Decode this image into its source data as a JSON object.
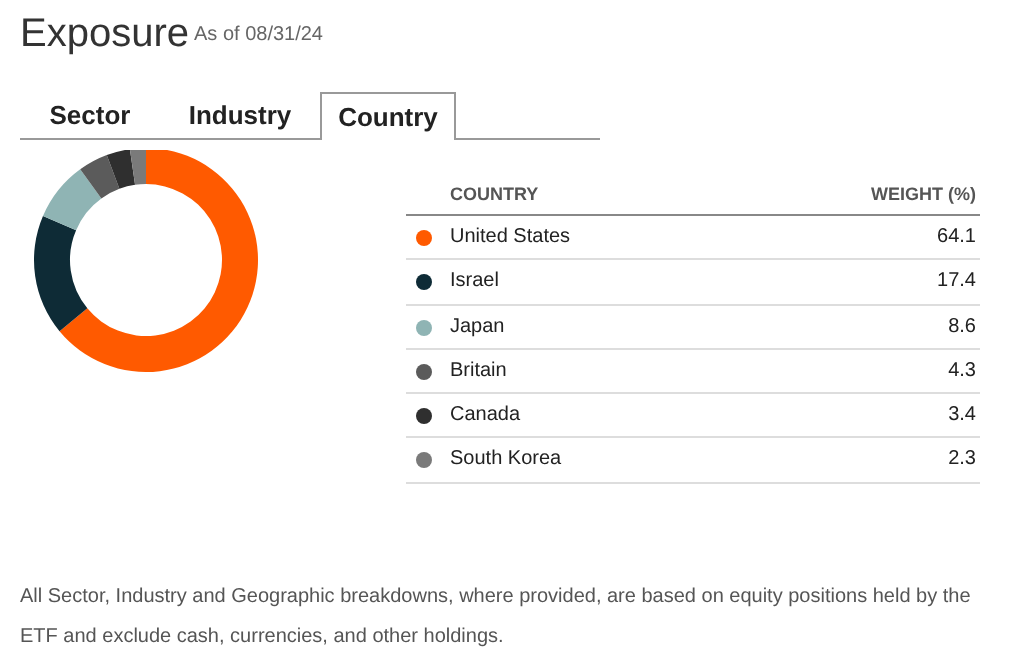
{
  "chart_data": [
    {
      "type": "other",
      "title": "Exposure",
      "subtitle": "As of 08/31/24",
      "categories": [
        "Sector",
        "Industry",
        "Country"
      ]
    },
    {
      "type": "donut",
      "legend_title": "COUNTRY",
      "ylabel": "WEIGHT (%)",
      "categories": [
        "United States",
        "Israel",
        "Japan",
        "Britain",
        "Canada",
        "South Korea"
      ],
      "values": [
        64.1,
        17.4,
        8.6,
        4.3,
        3.4,
        2.3
      ],
      "colors": [
        "#ff5a00",
        "#0e2b36",
        "#8fb4b4",
        "#5b5b5b",
        "#2f2f2f",
        "#7a7a7a"
      ],
      "data_labels": true,
      "legend": "right",
      "annotations": [
        "All Sector, Industry and Geographic breakdowns, where provided, are based on equity positions held by the ETF and exclude cash, currencies, and other holdings."
      ]
    }
  ]
}
